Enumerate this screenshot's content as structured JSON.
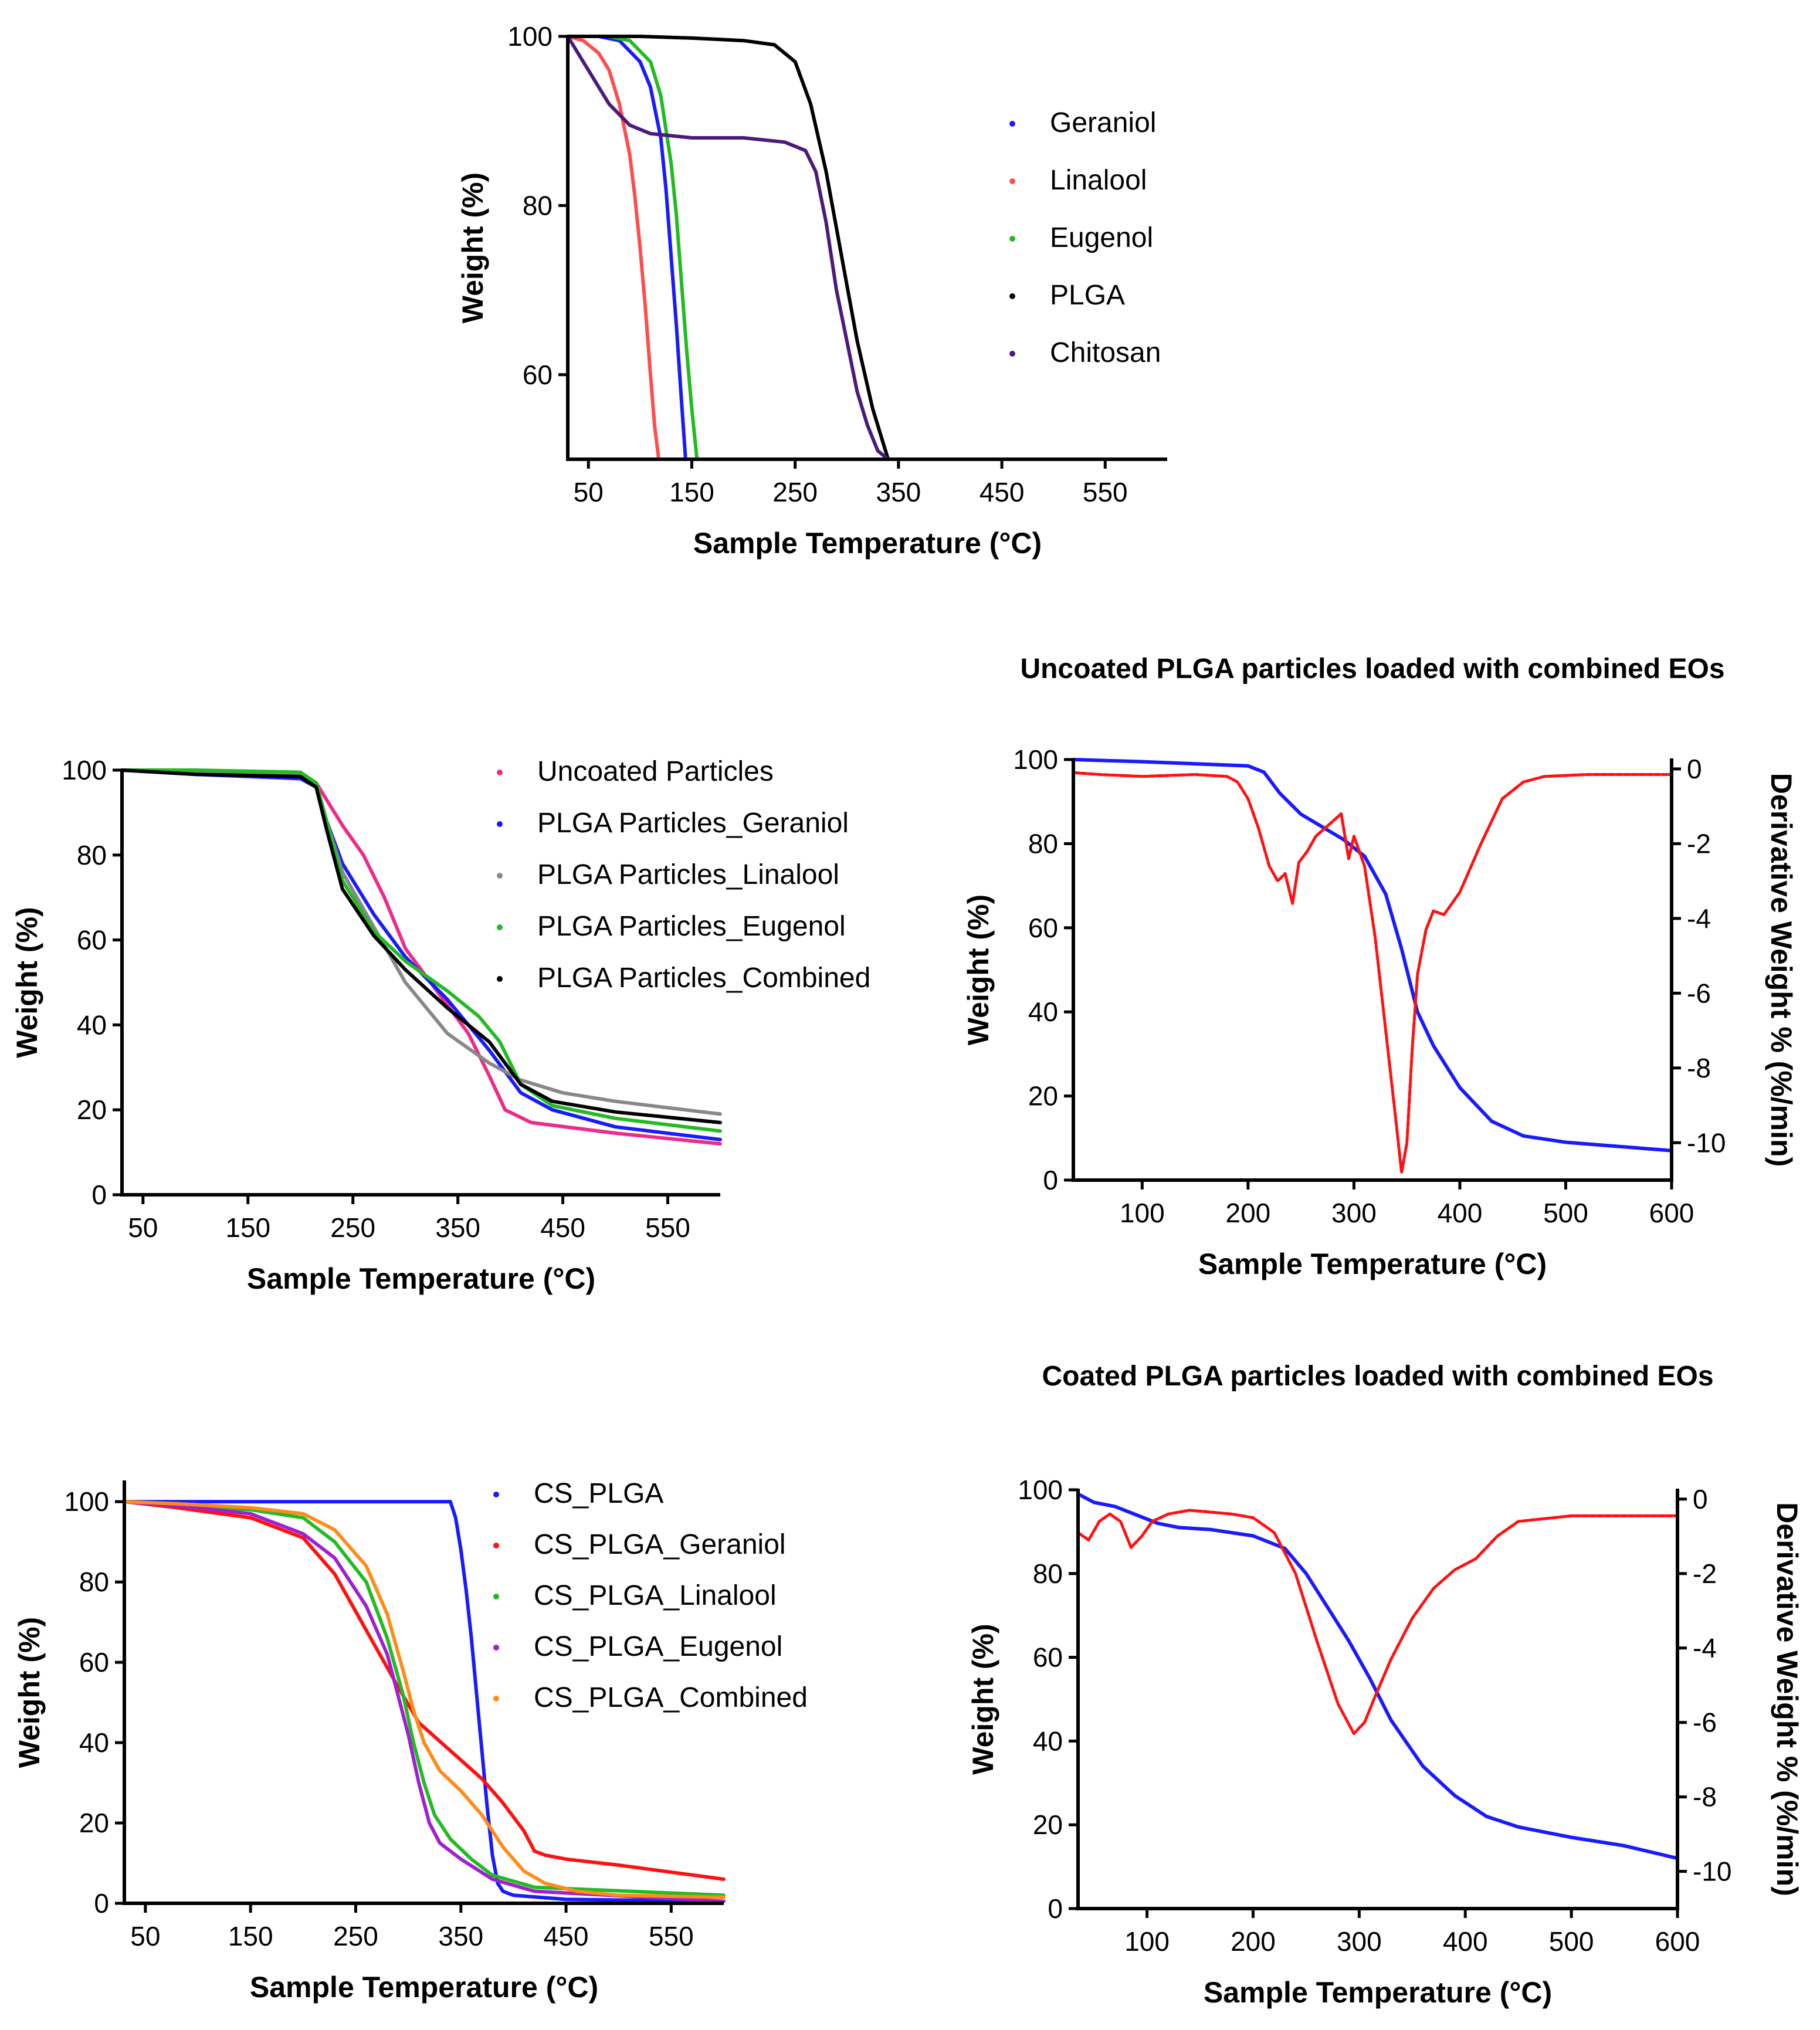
{
  "chart_data": [
    {
      "id": "pure",
      "type": "line",
      "title": "",
      "xlabel": "Sample Temperature (°C)",
      "ylabel": "Weight (%)",
      "xlim": [
        30,
        610
      ],
      "ylim": [
        50,
        100
      ],
      "xticks": [
        50,
        150,
        250,
        350,
        450,
        550
      ],
      "yticks": [
        60,
        80,
        100
      ],
      "series": [
        {
          "name": "Geraniol",
          "color": "#1a1aff",
          "x": [
            30,
            60,
            80,
            100,
            110,
            120,
            125,
            130,
            135,
            140,
            144
          ],
          "y": [
            100,
            100,
            99.5,
            97,
            94,
            88,
            82,
            74,
            66,
            57,
            50
          ]
        },
        {
          "name": "Linalool",
          "color": "#ff4d4d",
          "x": [
            30,
            45,
            60,
            70,
            80,
            90,
            95,
            100,
            105,
            110,
            114,
            118
          ],
          "y": [
            100,
            99.5,
            98,
            96,
            92,
            86,
            81,
            75,
            68,
            60,
            54,
            50
          ]
        },
        {
          "name": "Eugenol",
          "color": "#22bb22",
          "x": [
            30,
            70,
            90,
            110,
            120,
            130,
            135,
            140,
            145,
            150,
            155
          ],
          "y": [
            100,
            100,
            99.5,
            97,
            93,
            85,
            79,
            71,
            63,
            56,
            50
          ]
        },
        {
          "name": "PLGA",
          "color": "#000000",
          "x": [
            30,
            100,
            150,
            200,
            230,
            250,
            265,
            280,
            295,
            310,
            325,
            340
          ],
          "y": [
            100,
            100,
            99.8,
            99.5,
            99,
            97,
            92,
            84,
            74,
            64,
            56,
            50
          ]
        },
        {
          "name": "Chitosan",
          "color": "#4b1a7a",
          "x": [
            30,
            50,
            70,
            90,
            110,
            150,
            200,
            240,
            260,
            270,
            280,
            290,
            300,
            310,
            320,
            330,
            340
          ],
          "y": [
            100,
            96,
            92,
            89.5,
            88.5,
            88,
            88,
            87.5,
            86.5,
            84,
            78,
            70,
            64,
            58,
            54,
            51,
            50
          ]
        }
      ]
    },
    {
      "id": "uncoated",
      "type": "line",
      "title": "",
      "xlabel": "Sample Temperature (°C)",
      "ylabel": "Weight (%)",
      "xlim": [
        30,
        600
      ],
      "ylim": [
        0,
        100
      ],
      "xticks": [
        50,
        150,
        250,
        350,
        450,
        550
      ],
      "yticks": [
        0,
        20,
        40,
        60,
        80,
        100
      ],
      "series": [
        {
          "name": "Uncoated Particles",
          "color": "#ee2a8a",
          "x": [
            30,
            100,
            200,
            215,
            225,
            240,
            260,
            280,
            300,
            330,
            360,
            380,
            395,
            420,
            500,
            600
          ],
          "y": [
            100,
            99.5,
            99,
            97,
            93,
            87,
            80,
            70,
            58,
            48,
            38,
            28,
            20,
            17,
            14.5,
            12
          ]
        },
        {
          "name": "PLGA Particles_Geraniol",
          "color": "#1a1aff",
          "x": [
            30,
            100,
            200,
            215,
            225,
            240,
            270,
            300,
            340,
            380,
            410,
            440,
            500,
            600
          ],
          "y": [
            100,
            99,
            98,
            96,
            88,
            78,
            66,
            56,
            46,
            34,
            24,
            20,
            16,
            13
          ]
        },
        {
          "name": "PLGA Particles_Linalool",
          "color": "#888888",
          "x": [
            30,
            100,
            200,
            215,
            225,
            240,
            270,
            300,
            340,
            380,
            410,
            450,
            500,
            600
          ],
          "y": [
            100,
            99.5,
            99,
            96,
            88,
            76,
            63,
            50,
            38,
            31,
            27,
            24,
            22,
            19
          ]
        },
        {
          "name": "PLGA Particles_Eugenol",
          "color": "#22bb22",
          "x": [
            30,
            100,
            200,
            215,
            225,
            240,
            270,
            300,
            340,
            370,
            390,
            410,
            440,
            500,
            600
          ],
          "y": [
            100,
            100,
            99.5,
            97,
            88,
            74,
            62,
            55,
            48,
            42,
            36,
            26,
            21,
            18,
            15
          ]
        },
        {
          "name": "PLGA Particles_Combined",
          "color": "#000000",
          "x": [
            30,
            100,
            200,
            215,
            225,
            240,
            270,
            300,
            340,
            380,
            410,
            440,
            500,
            600
          ],
          "y": [
            100,
            99,
            98.5,
            96,
            86,
            72,
            61,
            53,
            44,
            36,
            26,
            22,
            19.5,
            17
          ]
        }
      ]
    },
    {
      "id": "coated",
      "type": "line",
      "title": "",
      "xlabel": "Sample Temperature (°C)",
      "ylabel": "Weight (%)",
      "xlim": [
        30,
        600
      ],
      "ylim": [
        0,
        105
      ],
      "xticks": [
        50,
        150,
        250,
        350,
        450,
        550
      ],
      "yticks": [
        0,
        20,
        40,
        60,
        80,
        100
      ],
      "series": [
        {
          "name": "CS_PLGA",
          "color": "#1a1aff",
          "x": [
            30,
            100,
            200,
            300,
            340,
            345,
            350,
            355,
            360,
            365,
            370,
            375,
            380,
            385,
            390,
            400,
            450,
            600
          ],
          "y": [
            100,
            100,
            100,
            100,
            100,
            96,
            88,
            78,
            66,
            52,
            38,
            24,
            12,
            5,
            3,
            2,
            1,
            0.5
          ]
        },
        {
          "name": "CS_PLGA_Geraniol",
          "color": "#ff1111",
          "x": [
            30,
            80,
            150,
            200,
            230,
            260,
            290,
            310,
            340,
            370,
            390,
            410,
            420,
            430,
            450,
            500,
            600
          ],
          "y": [
            100,
            98.5,
            96,
            91,
            82,
            68,
            54,
            45,
            38,
            31,
            25,
            18,
            13,
            12,
            11,
            9.5,
            6
          ]
        },
        {
          "name": "CS_PLGA_Linalool",
          "color": "#22bb22",
          "x": [
            30,
            80,
            150,
            200,
            230,
            260,
            280,
            295,
            305,
            315,
            325,
            340,
            360,
            380,
            420,
            600
          ],
          "y": [
            100,
            99,
            98,
            96,
            90,
            80,
            66,
            52,
            40,
            30,
            22,
            16,
            11,
            7,
            4,
            2
          ]
        },
        {
          "name": "CS_PLGA_Eugenol",
          "color": "#a020d0",
          "x": [
            30,
            80,
            150,
            200,
            230,
            260,
            280,
            290,
            300,
            310,
            320,
            330,
            350,
            380,
            420,
            600
          ],
          "y": [
            100,
            99,
            97,
            92,
            86,
            74,
            62,
            52,
            42,
            30,
            20,
            15,
            11,
            6,
            3,
            0.5
          ]
        },
        {
          "name": "CS_PLGA_Combined",
          "color": "#ff8c1a",
          "x": [
            30,
            80,
            150,
            200,
            230,
            260,
            280,
            295,
            305,
            315,
            330,
            350,
            370,
            390,
            410,
            430,
            460,
            500,
            600
          ],
          "y": [
            100,
            99.5,
            98.5,
            97,
            93,
            84,
            72,
            58,
            48,
            40,
            33,
            28,
            22,
            14,
            8,
            5,
            3,
            2,
            1.5
          ]
        }
      ]
    },
    {
      "id": "dtg_uncoated",
      "type": "line",
      "title": "Uncoated PLGA particles loaded with combined EOs",
      "xlabel": "Sample Temperature (°C)",
      "ylabel": "Weight (%)",
      "ylabel_right": "Derivative Weight % (%/min)",
      "xlim": [
        35,
        600
      ],
      "ylim": [
        0,
        100
      ],
      "ylim_right": [
        -11,
        0.25
      ],
      "xticks": [
        100,
        200,
        300,
        400,
        500,
        600
      ],
      "yticks": [
        0,
        20,
        40,
        60,
        80,
        100
      ],
      "yticks_right": [
        0,
        -2,
        -4,
        -6,
        -8,
        -10
      ],
      "series": [
        {
          "name": "Weight",
          "axis": "left",
          "color": "#1a1aff",
          "x": [
            35,
            100,
            150,
            200,
            215,
            230,
            250,
            270,
            290,
            310,
            330,
            345,
            360,
            375,
            400,
            430,
            460,
            500,
            550,
            600
          ],
          "y": [
            100,
            99.5,
            99,
            98.5,
            97,
            92,
            87,
            84,
            81,
            77,
            68,
            55,
            40,
            32,
            22,
            14,
            10.5,
            9,
            8,
            7
          ]
        },
        {
          "name": "Derivative",
          "axis": "right",
          "color": "#ff1111",
          "x": [
            35,
            60,
            100,
            150,
            180,
            190,
            200,
            210,
            220,
            228,
            235,
            242,
            248,
            256,
            264,
            272,
            280,
            288,
            295,
            300,
            310,
            320,
            330,
            340,
            345,
            350,
            355,
            360,
            368,
            375,
            385,
            400,
            420,
            440,
            460,
            480,
            520,
            600
          ],
          "y": [
            -0.1,
            -0.15,
            -0.2,
            -0.15,
            -0.2,
            -0.35,
            -0.8,
            -1.6,
            -2.6,
            -3.0,
            -2.8,
            -3.6,
            -2.5,
            -2.2,
            -1.8,
            -1.6,
            -1.4,
            -1.2,
            -2.4,
            -1.8,
            -2.6,
            -4.5,
            -7.0,
            -9.5,
            -10.8,
            -10.0,
            -7.5,
            -5.5,
            -4.3,
            -3.8,
            -3.9,
            -3.3,
            -2.0,
            -0.8,
            -0.35,
            -0.2,
            -0.15,
            -0.15
          ]
        }
      ]
    },
    {
      "id": "dtg_coated",
      "type": "line",
      "title": "Coated PLGA particles loaded with combined EOs",
      "xlabel": "Sample Temperature (°C)",
      "ylabel": "Weight (%)",
      "ylabel_right": "Derivative Weight % (%/min)",
      "xlim": [
        35,
        600
      ],
      "ylim": [
        0,
        100
      ],
      "ylim_right": [
        -11,
        0.25
      ],
      "xticks": [
        100,
        200,
        300,
        400,
        500,
        600
      ],
      "yticks": [
        0,
        20,
        40,
        60,
        80,
        100
      ],
      "yticks_right": [
        0,
        -2,
        -4,
        -6,
        -8,
        -10
      ],
      "series": [
        {
          "name": "Weight",
          "axis": "left",
          "color": "#1a1aff",
          "x": [
            35,
            50,
            70,
            90,
            110,
            130,
            160,
            200,
            230,
            250,
            270,
            290,
            310,
            330,
            360,
            390,
            420,
            450,
            500,
            550,
            600
          ],
          "y": [
            99,
            97,
            96,
            94,
            92,
            91,
            90.5,
            89,
            86,
            80,
            72,
            64,
            55,
            45,
            34,
            27,
            22,
            19.5,
            17,
            15,
            12
          ]
        },
        {
          "name": "Derivative",
          "axis": "right",
          "color": "#ff1111",
          "x": [
            35,
            45,
            55,
            65,
            75,
            85,
            95,
            105,
            120,
            140,
            160,
            180,
            200,
            220,
            240,
            260,
            280,
            295,
            305,
            315,
            330,
            350,
            370,
            390,
            410,
            430,
            450,
            500,
            550,
            600
          ],
          "y": [
            -0.9,
            -1.1,
            -0.6,
            -0.4,
            -0.6,
            -1.3,
            -1.0,
            -0.6,
            -0.4,
            -0.3,
            -0.35,
            -0.4,
            -0.5,
            -0.9,
            -2.0,
            -3.8,
            -5.5,
            -6.3,
            -6.0,
            -5.3,
            -4.3,
            -3.2,
            -2.4,
            -1.9,
            -1.6,
            -1.0,
            -0.6,
            -0.45,
            -0.45,
            -0.45
          ]
        }
      ]
    }
  ],
  "legends": {
    "pure": [
      "Geraniol",
      "Linalool",
      "Eugenol",
      "PLGA",
      "Chitosan"
    ],
    "uncoated": [
      "Uncoated Particles",
      "PLGA Particles_Geraniol",
      "PLGA Particles_Linalool",
      "PLGA Particles_Eugenol",
      "PLGA Particles_Combined"
    ],
    "coated": [
      "CS_PLGA",
      "CS_PLGA_Geraniol",
      "CS_PLGA_Linalool",
      "CS_PLGA_Eugenol",
      "CS_PLGA_Combined"
    ]
  }
}
